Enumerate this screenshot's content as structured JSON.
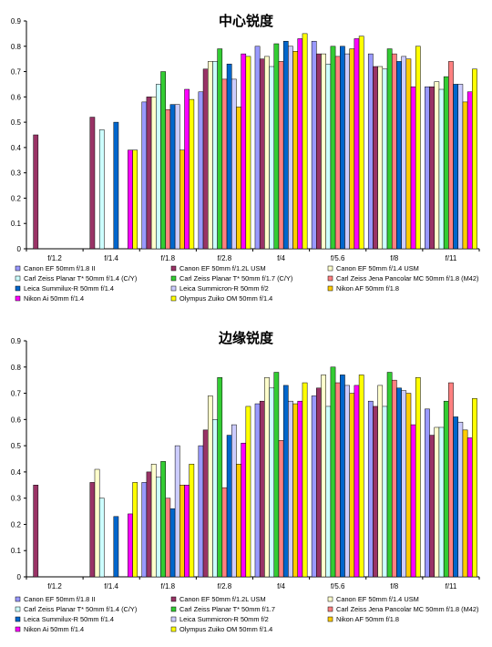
{
  "chart_data": [
    {
      "type": "bar",
      "title": "中心锐度",
      "categories": [
        "f/1.2",
        "f/1.4",
        "f/1.8",
        "f/2.8",
        "f/4",
        "f/5.6",
        "f/8",
        "f/11"
      ],
      "ylim": [
        0,
        0.9
      ],
      "yticks": [
        "0",
        "0.1",
        "0.2",
        "0.3",
        "0.4",
        "0.5",
        "0.6",
        "0.7",
        "0.8",
        "0.9"
      ],
      "grid": false,
      "legend_position": "bottom",
      "series": [
        {
          "name": "Canon EF 50mm f/1.8 II",
          "values": [
            null,
            null,
            0.58,
            0.62,
            0.8,
            0.82,
            0.77,
            0.64
          ]
        },
        {
          "name": "Canon EF 50mm f/1.2L USM",
          "values": [
            0.45,
            0.52,
            0.6,
            0.71,
            0.75,
            0.77,
            0.72,
            0.64
          ]
        },
        {
          "name": "Canon EF 50mm f/1.4 USM",
          "values": [
            null,
            null,
            0.6,
            0.74,
            0.76,
            0.77,
            0.72,
            0.66
          ]
        },
        {
          "name": "Carl Zeiss Planar T* 50mm f/1.4 (C/Y)",
          "values": [
            null,
            0.47,
            0.65,
            0.74,
            0.72,
            0.73,
            0.71,
            0.63
          ]
        },
        {
          "name": "Carl Zeiss Planar T* 50mm f/1.7 (C/Y)",
          "values": [
            null,
            null,
            0.7,
            0.79,
            0.81,
            0.8,
            0.79,
            0.68
          ]
        },
        {
          "name": "Carl Zeiss Jena Pancolar MC 50mm f/1.8 (M42)",
          "values": [
            null,
            null,
            0.55,
            0.67,
            0.74,
            0.76,
            0.77,
            0.74
          ]
        },
        {
          "name": "Leica Summilux-R 50mm f/1.4",
          "values": [
            null,
            0.5,
            0.57,
            0.73,
            0.82,
            0.8,
            0.74,
            0.65
          ]
        },
        {
          "name": "Leica Summicron-R 50mm f/2",
          "values": [
            null,
            null,
            0.57,
            0.67,
            0.8,
            0.77,
            0.76,
            0.65
          ]
        },
        {
          "name": "Nikon AF 50mm f/1.8",
          "values": [
            null,
            null,
            0.39,
            0.56,
            0.78,
            0.79,
            0.75,
            0.58
          ]
        },
        {
          "name": "Nikon Ai 50mm f/1.4",
          "values": [
            null,
            0.39,
            0.63,
            0.77,
            0.83,
            0.83,
            0.64,
            0.62
          ]
        },
        {
          "name": "Olympus Zuiko OM 50mm f/1.4",
          "values": [
            null,
            0.39,
            0.59,
            0.76,
            0.85,
            0.84,
            0.8,
            0.71
          ]
        }
      ],
      "legend": [
        "Canon EF 50mm f/1.8 II",
        "Canon EF 50mm f/1.2L USM",
        "Canon EF 50mm f/1.4 USM",
        "Carl Zeiss Planar T* 50mm f/1.4 (C/Y)",
        "Carl Zeiss Planar T* 50mm f/1.7 (C/Y)",
        "Carl Zeiss Jena Pancolar MC 50mm f/1.8 (M42)",
        "Leica Summilux-R 50mm f/1.4",
        "Leica Summicron-R 50mm f/2",
        "Nikon AF 50mm f/1.8",
        "Nikon Ai 50mm f/1.4",
        "Olympus Zuiko OM 50mm f/1.4"
      ]
    },
    {
      "type": "bar",
      "title": "边缘锐度",
      "categories": [
        "f/1.2",
        "f/1.4",
        "f/1.8",
        "f/2.8",
        "f/4",
        "f/5.6",
        "f/8",
        "f/11"
      ],
      "ylim": [
        0,
        0.9
      ],
      "yticks": [
        "0",
        "0.1",
        "0.2",
        "0.3",
        "0.4",
        "0.5",
        "0.6",
        "0.7",
        "0.8",
        "0.9"
      ],
      "grid": false,
      "legend_position": "bottom",
      "series": [
        {
          "name": "Canon EF 50mm f/1.8 II",
          "values": [
            null,
            null,
            0.36,
            0.5,
            0.66,
            0.69,
            0.67,
            0.64
          ]
        },
        {
          "name": "Canon EF 50mm f/1.2L USM",
          "values": [
            0.35,
            0.36,
            0.4,
            0.56,
            0.67,
            0.72,
            0.65,
            0.54
          ]
        },
        {
          "name": "Canon EF 50mm f/1.4 USM",
          "values": [
            null,
            0.41,
            0.43,
            0.69,
            0.76,
            0.77,
            0.73,
            0.57
          ]
        },
        {
          "name": "Carl Zeiss Planar T* 50mm f/1.4 (C/Y)",
          "values": [
            null,
            0.3,
            0.38,
            0.6,
            0.72,
            0.65,
            0.65,
            0.57
          ]
        },
        {
          "name": "Carl Zeiss Planar T* 50mm f/1.7",
          "values": [
            null,
            null,
            0.44,
            0.76,
            0.78,
            0.8,
            0.78,
            0.67
          ]
        },
        {
          "name": "Carl Zeiss Jena Pancolar MC 50mm f/1.8 (M42)",
          "values": [
            null,
            null,
            0.3,
            0.34,
            0.52,
            0.74,
            0.75,
            0.74
          ]
        },
        {
          "name": "Leica Summilux-R 50mm f/1.4",
          "values": [
            null,
            0.23,
            0.26,
            0.54,
            0.73,
            0.77,
            0.72,
            0.61
          ]
        },
        {
          "name": "Leica Summicron-R 50mm f/2",
          "values": [
            null,
            null,
            0.5,
            0.58,
            0.67,
            0.73,
            0.71,
            0.59
          ]
        },
        {
          "name": "Nikon AF 50mm f/1.8",
          "values": [
            null,
            null,
            0.35,
            0.43,
            0.66,
            0.7,
            0.7,
            0.56
          ]
        },
        {
          "name": "Nikon Ai 50mm f/1.4",
          "values": [
            null,
            0.24,
            0.35,
            0.51,
            0.67,
            0.73,
            0.58,
            0.53
          ]
        },
        {
          "name": "Olympus Zuiko OM 50mm f/1.4",
          "values": [
            null,
            0.36,
            0.43,
            0.65,
            0.74,
            0.77,
            0.76,
            0.68
          ]
        }
      ],
      "legend": [
        "Canon EF 50mm f/1.8 II",
        "Canon EF 50mm f/1.2L USM",
        "Canon EF 50mm f/1.4 USM",
        "Carl Zeiss Planar T* 50mm f/1.4 (C/Y)",
        "Carl Zeiss Planar T* 50mm f/1.7",
        "Carl Zeiss Jena Pancolar MC 50mm f/1.8 (M42)",
        "Leica Summilux-R 50mm f/1.4",
        "Leica Summicron-R 50mm f/2",
        "Nikon AF 50mm f/1.8",
        "Nikon Ai 50mm f/1.4",
        "Olympus Zuiko OM 50mm f/1.4"
      ]
    }
  ],
  "series_colors": [
    "#9999ff",
    "#993366",
    "#ffffcc",
    "#ccffff",
    "#33cc33",
    "#ff8080",
    "#0066cc",
    "#ccccff",
    "#ffcc00",
    "#ff00ff",
    "#ffff00"
  ]
}
